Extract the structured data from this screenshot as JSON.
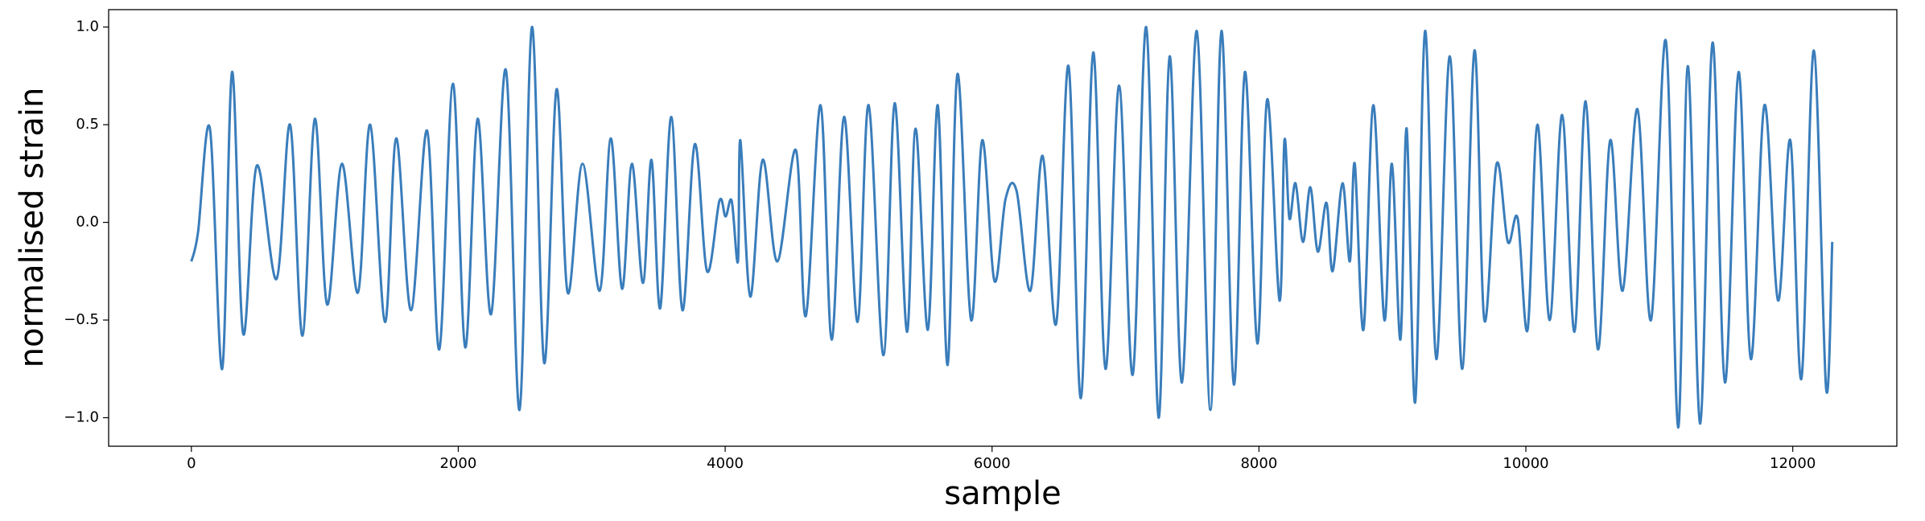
{
  "chart_data": {
    "type": "line",
    "xlabel": "sample",
    "ylabel": "normalised strain",
    "color": "#3a7dbb",
    "xlim": [
      -620,
      12780
    ],
    "ylim": [
      -1.146,
      1.089
    ],
    "xticks": [
      0,
      2000,
      4000,
      6000,
      8000,
      10000,
      12000
    ],
    "yticks": [
      {
        "value": -1.0,
        "label": "−1.0"
      },
      {
        "value": -0.5,
        "label": "−0.5"
      },
      {
        "value": 0.0,
        "label": "0.0"
      },
      {
        "value": 0.5,
        "label": "0.5"
      },
      {
        "value": 1.0,
        "label": "1.0"
      }
    ],
    "x": [
      0,
      50,
      139,
      231,
      305,
      388,
      490,
      638,
      740,
      832,
      925,
      1017,
      1128,
      1248,
      1340,
      1451,
      1535,
      1646,
      1766,
      1858,
      1960,
      2052,
      2145,
      2246,
      2357,
      2459,
      2552,
      2644,
      2736,
      2820,
      2931,
      3060,
      3143,
      3227,
      3301,
      3384,
      3448,
      3513,
      3596,
      3680,
      3772,
      3864,
      3957,
      4003,
      4049,
      4096,
      4114,
      4188,
      4281,
      4391,
      4530,
      4604,
      4715,
      4798,
      4891,
      4992,
      5075,
      5186,
      5270,
      5362,
      5427,
      5519,
      5593,
      5667,
      5741,
      5843,
      5926,
      6018,
      6101,
      6184,
      6287,
      6379,
      6480,
      6573,
      6665,
      6758,
      6850,
      6952,
      7054,
      7155,
      7248,
      7331,
      7423,
      7534,
      7636,
      7719,
      7812,
      7895,
      7988,
      8062,
      8154,
      8191,
      8228,
      8274,
      8330,
      8385,
      8441,
      8506,
      8552,
      8626,
      8681,
      8718,
      8783,
      8857,
      8940,
      8996,
      9060,
      9107,
      9171,
      9245,
      9329,
      9430,
      9523,
      9615,
      9689,
      9781,
      9865,
      9939,
      10013,
      10087,
      10179,
      10272,
      10364,
      10448,
      10540,
      10632,
      10725,
      10836,
      10938,
      11049,
      11141,
      11214,
      11307,
      11399,
      11492,
      11594,
      11686,
      11788,
      11890,
      11982,
      12065,
      12158,
      12250,
      12296
    ],
    "values": [
      -0.2,
      -0.05,
      0.48,
      -0.75,
      0.77,
      -0.57,
      0.29,
      -0.29,
      0.5,
      -0.58,
      0.53,
      -0.42,
      0.3,
      -0.36,
      0.5,
      -0.51,
      0.43,
      -0.45,
      0.47,
      -0.65,
      0.71,
      -0.64,
      0.53,
      -0.47,
      0.78,
      -0.96,
      1.0,
      -0.72,
      0.68,
      -0.36,
      0.3,
      -0.35,
      0.43,
      -0.34,
      0.3,
      -0.31,
      0.32,
      -0.44,
      0.54,
      -0.45,
      0.4,
      -0.25,
      0.11,
      0.03,
      0.11,
      -0.2,
      0.42,
      -0.38,
      0.32,
      -0.2,
      0.37,
      -0.48,
      0.6,
      -0.6,
      0.54,
      -0.51,
      0.6,
      -0.68,
      0.61,
      -0.56,
      0.48,
      -0.55,
      0.6,
      -0.73,
      0.76,
      -0.5,
      0.42,
      -0.3,
      0.12,
      0.16,
      -0.35,
      0.34,
      -0.52,
      0.8,
      -0.9,
      0.87,
      -0.75,
      0.7,
      -0.78,
      1.0,
      -1.0,
      0.85,
      -0.82,
      0.98,
      -0.96,
      0.98,
      -0.83,
      0.77,
      -0.62,
      0.63,
      -0.4,
      0.42,
      0.02,
      0.2,
      -0.1,
      0.18,
      -0.15,
      0.1,
      -0.25,
      0.2,
      -0.2,
      0.3,
      -0.55,
      0.6,
      -0.5,
      0.3,
      -0.6,
      0.48,
      -0.92,
      0.98,
      -0.7,
      0.85,
      -0.75,
      0.88,
      -0.5,
      0.3,
      -0.1,
      0.02,
      -0.55,
      0.5,
      -0.5,
      0.55,
      -0.56,
      0.62,
      -0.65,
      0.42,
      -0.35,
      0.58,
      -0.5,
      0.93,
      -1.05,
      0.8,
      -1.03,
      0.92,
      -0.82,
      0.77,
      -0.7,
      0.6,
      -0.4,
      0.42,
      -0.8,
      0.88,
      -0.85,
      -0.1
    ]
  }
}
